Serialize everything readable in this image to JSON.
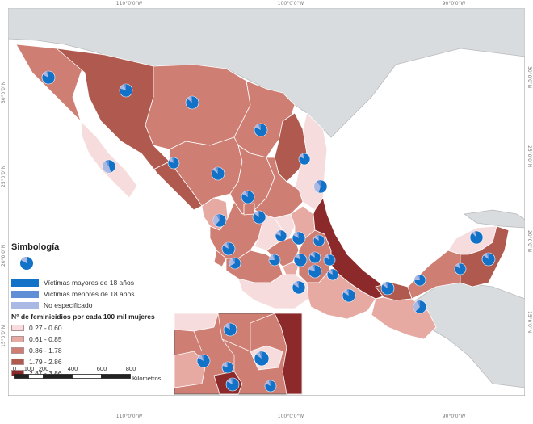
{
  "map": {
    "coords": {
      "top": [
        "110°0'0\"W",
        "100°0'0\"W",
        "90°0'0\"W"
      ],
      "bottom": [
        "110°0'0\"W",
        "100°0'0\"W",
        "90°0'0\"W"
      ],
      "left": [
        "30°0'0\"N",
        "25°0'0\"N",
        "20°0'0\"N",
        "15°0'0\"N"
      ],
      "right": [
        "30°0'0\"N",
        "25°0'0\"N",
        "20°0'0\"N",
        "15°0'0\"N"
      ]
    },
    "colors": {
      "sea": "#ffffff",
      "land_outside": "#d9dcdf",
      "class1": "#f6dcdc",
      "class2": "#e6aaa3",
      "class3": "#cf7e73",
      "class4": "#b05a4f",
      "class5": "#8c2a2b",
      "pie_major": "#1272c8",
      "pie_minor": "#5f8fd4",
      "pie_unspecified": "#a9b9e3"
    }
  },
  "legend": {
    "title": "Simbología",
    "pie_items": [
      {
        "label": "Víctimas mayores de 18 años",
        "color": "#1272c8"
      },
      {
        "label": "Víctimas menores de 18 años",
        "color": "#5f8fd4"
      },
      {
        "label": "No especificado",
        "color": "#a9b9e3"
      }
    ],
    "rate_heading": "N° de feminicidios por cada 100 mil mujeres",
    "rate_classes": [
      {
        "label": "0.27 - 0.60",
        "color": "#f6dcdc"
      },
      {
        "label": "0.61 - 0.85",
        "color": "#e6aaa3"
      },
      {
        "label": "0.86 - 1.78",
        "color": "#cf7e73"
      },
      {
        "label": "1.79 - 2.86",
        "color": "#b05a4f"
      },
      {
        "label": "2.87 - 3.86",
        "color": "#8c2a2b"
      }
    ]
  },
  "scale": {
    "ticks": [
      "0",
      "100",
      "200",
      "400",
      "600",
      "800"
    ],
    "unit": "Kilómetros"
  }
}
